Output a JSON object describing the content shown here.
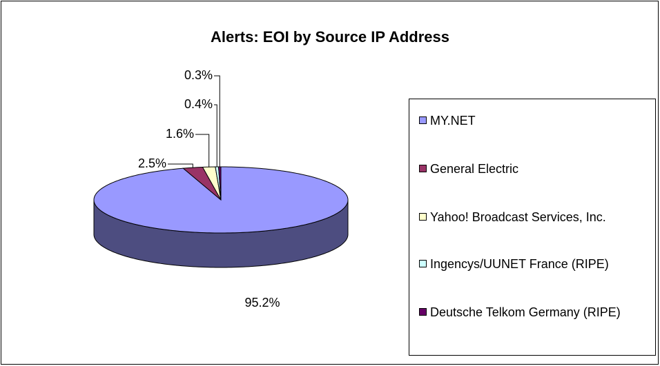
{
  "chart_data": {
    "type": "pie",
    "title": "Alerts: EOI by Source IP Address",
    "categories": [
      "MY.NET",
      "General Electric",
      "Yahoo! Broadcast Services, Inc.",
      "Ingencys/UUNET France (RIPE)",
      "Deutsche Telkom Germany (RIPE)"
    ],
    "values": [
      95.2,
      2.5,
      1.6,
      0.4,
      0.3
    ],
    "value_labels": [
      "95.2%",
      "2.5%",
      "1.6%",
      "0.4%",
      "0.3%"
    ],
    "colors": [
      "#9999ff",
      "#993366",
      "#ffffcc",
      "#ccffff",
      "#660066"
    ],
    "legend": "right"
  }
}
